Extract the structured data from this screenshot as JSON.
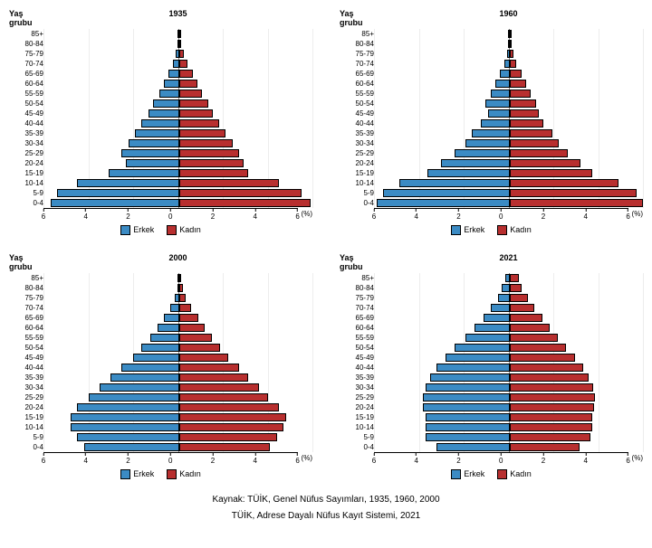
{
  "colors": {
    "male": "#3b8bc4",
    "female": "#b82f2f",
    "background": "#ffffff",
    "axis": "#000000",
    "grid": "rgba(0,0,0,0.07)"
  },
  "axis": {
    "xmin_abs": 6,
    "ticks": [
      6,
      4,
      2,
      0,
      2,
      4,
      6
    ],
    "xaxis_label": "(%)"
  },
  "labels": {
    "age_group_header": "Yaş grubu",
    "male": "Erkek",
    "female": "Kadın"
  },
  "age_groups": [
    "85+",
    "80-84",
    "75-79",
    "70-74",
    "65-69",
    "60-64",
    "55-59",
    "50-54",
    "45-49",
    "40-44",
    "35-39",
    "30-34",
    "25-29",
    "20-24",
    "15-19",
    "10-14",
    "5-9",
    "0-4"
  ],
  "charts": [
    {
      "year": "1935",
      "male": [
        0.05,
        0.08,
        0.15,
        0.3,
        0.5,
        0.7,
        0.9,
        1.2,
        1.4,
        1.7,
        2.0,
        2.3,
        2.6,
        2.4,
        3.2,
        4.6,
        5.5,
        5.8
      ],
      "female": [
        0.06,
        0.1,
        0.2,
        0.35,
        0.6,
        0.8,
        1.0,
        1.3,
        1.5,
        1.8,
        2.1,
        2.4,
        2.7,
        2.9,
        3.1,
        4.5,
        5.5,
        5.9
      ]
    },
    {
      "year": "1960",
      "male": [
        0.04,
        0.07,
        0.12,
        0.25,
        0.45,
        0.65,
        0.85,
        1.1,
        1.0,
        1.3,
        1.7,
        2.0,
        2.5,
        3.1,
        3.7,
        5.0,
        5.7,
        6.0
      ],
      "female": [
        0.05,
        0.09,
        0.15,
        0.3,
        0.55,
        0.75,
        0.95,
        1.2,
        1.3,
        1.5,
        1.9,
        2.2,
        2.6,
        3.2,
        3.7,
        4.9,
        5.7,
        6.0
      ]
    },
    {
      "year": "2000",
      "male": [
        0.05,
        0.1,
        0.2,
        0.4,
        0.7,
        1.0,
        1.3,
        1.7,
        2.1,
        2.6,
        3.1,
        3.6,
        4.1,
        4.6,
        4.9,
        4.9,
        4.6,
        4.3
      ],
      "female": [
        0.08,
        0.15,
        0.3,
        0.55,
        0.85,
        1.15,
        1.45,
        1.85,
        2.2,
        2.7,
        3.1,
        3.6,
        4.0,
        4.5,
        4.8,
        4.7,
        4.4,
        4.1
      ]
    },
    {
      "year": "2021",
      "male": [
        0.2,
        0.35,
        0.55,
        0.85,
        1.2,
        1.6,
        2.0,
        2.5,
        2.9,
        3.3,
        3.6,
        3.8,
        3.9,
        3.9,
        3.8,
        3.8,
        3.8,
        3.3
      ],
      "female": [
        0.4,
        0.55,
        0.8,
        1.1,
        1.45,
        1.8,
        2.15,
        2.55,
        2.95,
        3.3,
        3.55,
        3.75,
        3.85,
        3.8,
        3.7,
        3.7,
        3.65,
        3.15
      ]
    }
  ],
  "sources": [
    "Kaynak: TÜİK, Genel Nüfus Sayımları, 1935, 1960, 2000",
    "TÜİK, Adrese Dayalı Nüfus Kayıt Sistemi, 2021"
  ]
}
